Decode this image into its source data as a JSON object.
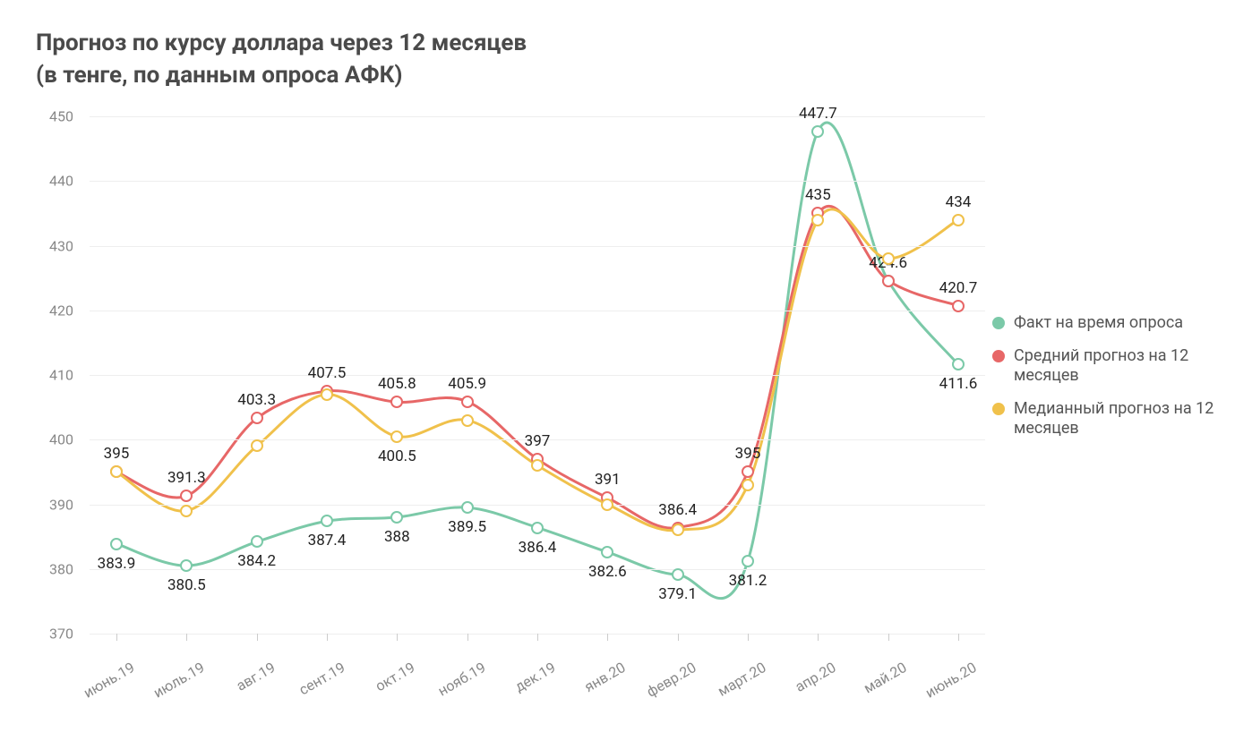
{
  "title_line1": "Прогноз по курсу доллара через 12 месяцев",
  "title_line2": "(в тенге, по данным опроса АФК)",
  "chart": {
    "type": "line",
    "ylim": [
      370,
      450
    ],
    "ytick_step": 10,
    "grid_color": "#eeeeee",
    "axis_text_color": "#888888",
    "label_color": "#222222",
    "background_color": "#ffffff",
    "categories": [
      "июнь.19",
      "июль.19",
      "авг.19",
      "сент.19",
      "окт.19",
      "нояб.19",
      "дек.19",
      "янв.20",
      "февр.20",
      "март.20",
      "апр.20",
      "май.20",
      "июнь.20"
    ],
    "series": [
      {
        "name": "Факт на время опроса",
        "color": "#7bc9a8",
        "values": [
          383.9,
          380.5,
          384.2,
          387.4,
          388,
          389.5,
          386.4,
          382.6,
          379.1,
          381.2,
          447.7,
          424.6,
          411.6
        ],
        "label_offset_y": 22,
        "label_special": {
          "10": -20,
          "11": -20,
          "12": 22
        }
      },
      {
        "name": "Средний прогноз на 12 месяцев",
        "color": "#e76767",
        "values": [
          395,
          391.3,
          403.3,
          407.5,
          405.8,
          405.9,
          397,
          391,
          386.4,
          395,
          435,
          424.6,
          420.7
        ],
        "skip_labels": [
          11
        ],
        "label_offset_y": -20
      },
      {
        "name": "Медианный прогноз на 12 месяцев",
        "color": "#f0c14b",
        "values": [
          395,
          389,
          399,
          407,
          400.5,
          403,
          396,
          390,
          386,
          393,
          434,
          428,
          434
        ],
        "skip_labels": [
          0,
          1,
          2,
          3,
          5,
          6,
          7,
          8,
          9,
          10,
          11
        ],
        "label_offset_y": -20,
        "label_special": {
          "4": 22,
          "12": -20
        }
      }
    ],
    "line_width": 3,
    "marker_radius": 5,
    "tick_fontsize": 16,
    "label_fontsize": 17,
    "title_fontsize": 26
  },
  "legend": {
    "items": [
      {
        "label": "Факт на время опроса",
        "color": "#7bc9a8"
      },
      {
        "label": "Средний прогноз на 12 месяцев",
        "color": "#e76767"
      },
      {
        "label": "Медианный прогноз на 12 месяцев",
        "color": "#f0c14b"
      }
    ]
  }
}
